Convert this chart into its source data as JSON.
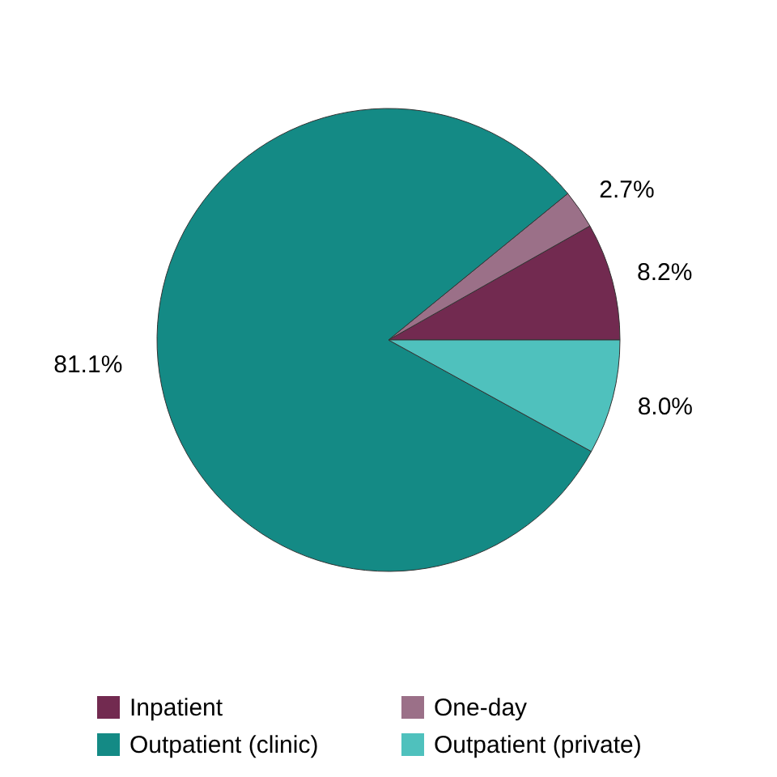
{
  "chart_data": {
    "type": "pie",
    "categories": [
      "Inpatient",
      "One-day",
      "Outpatient (clinic)",
      "Outpatient (private)"
    ],
    "values": [
      8.2,
      2.7,
      81.1,
      8.0
    ],
    "colors": [
      "#722a50",
      "#9b7088",
      "#148a85",
      "#4fc1bd"
    ],
    "value_labels": [
      "8.2%",
      "2.7%",
      "81.1%",
      "8.0%"
    ],
    "legend": "bottom"
  }
}
